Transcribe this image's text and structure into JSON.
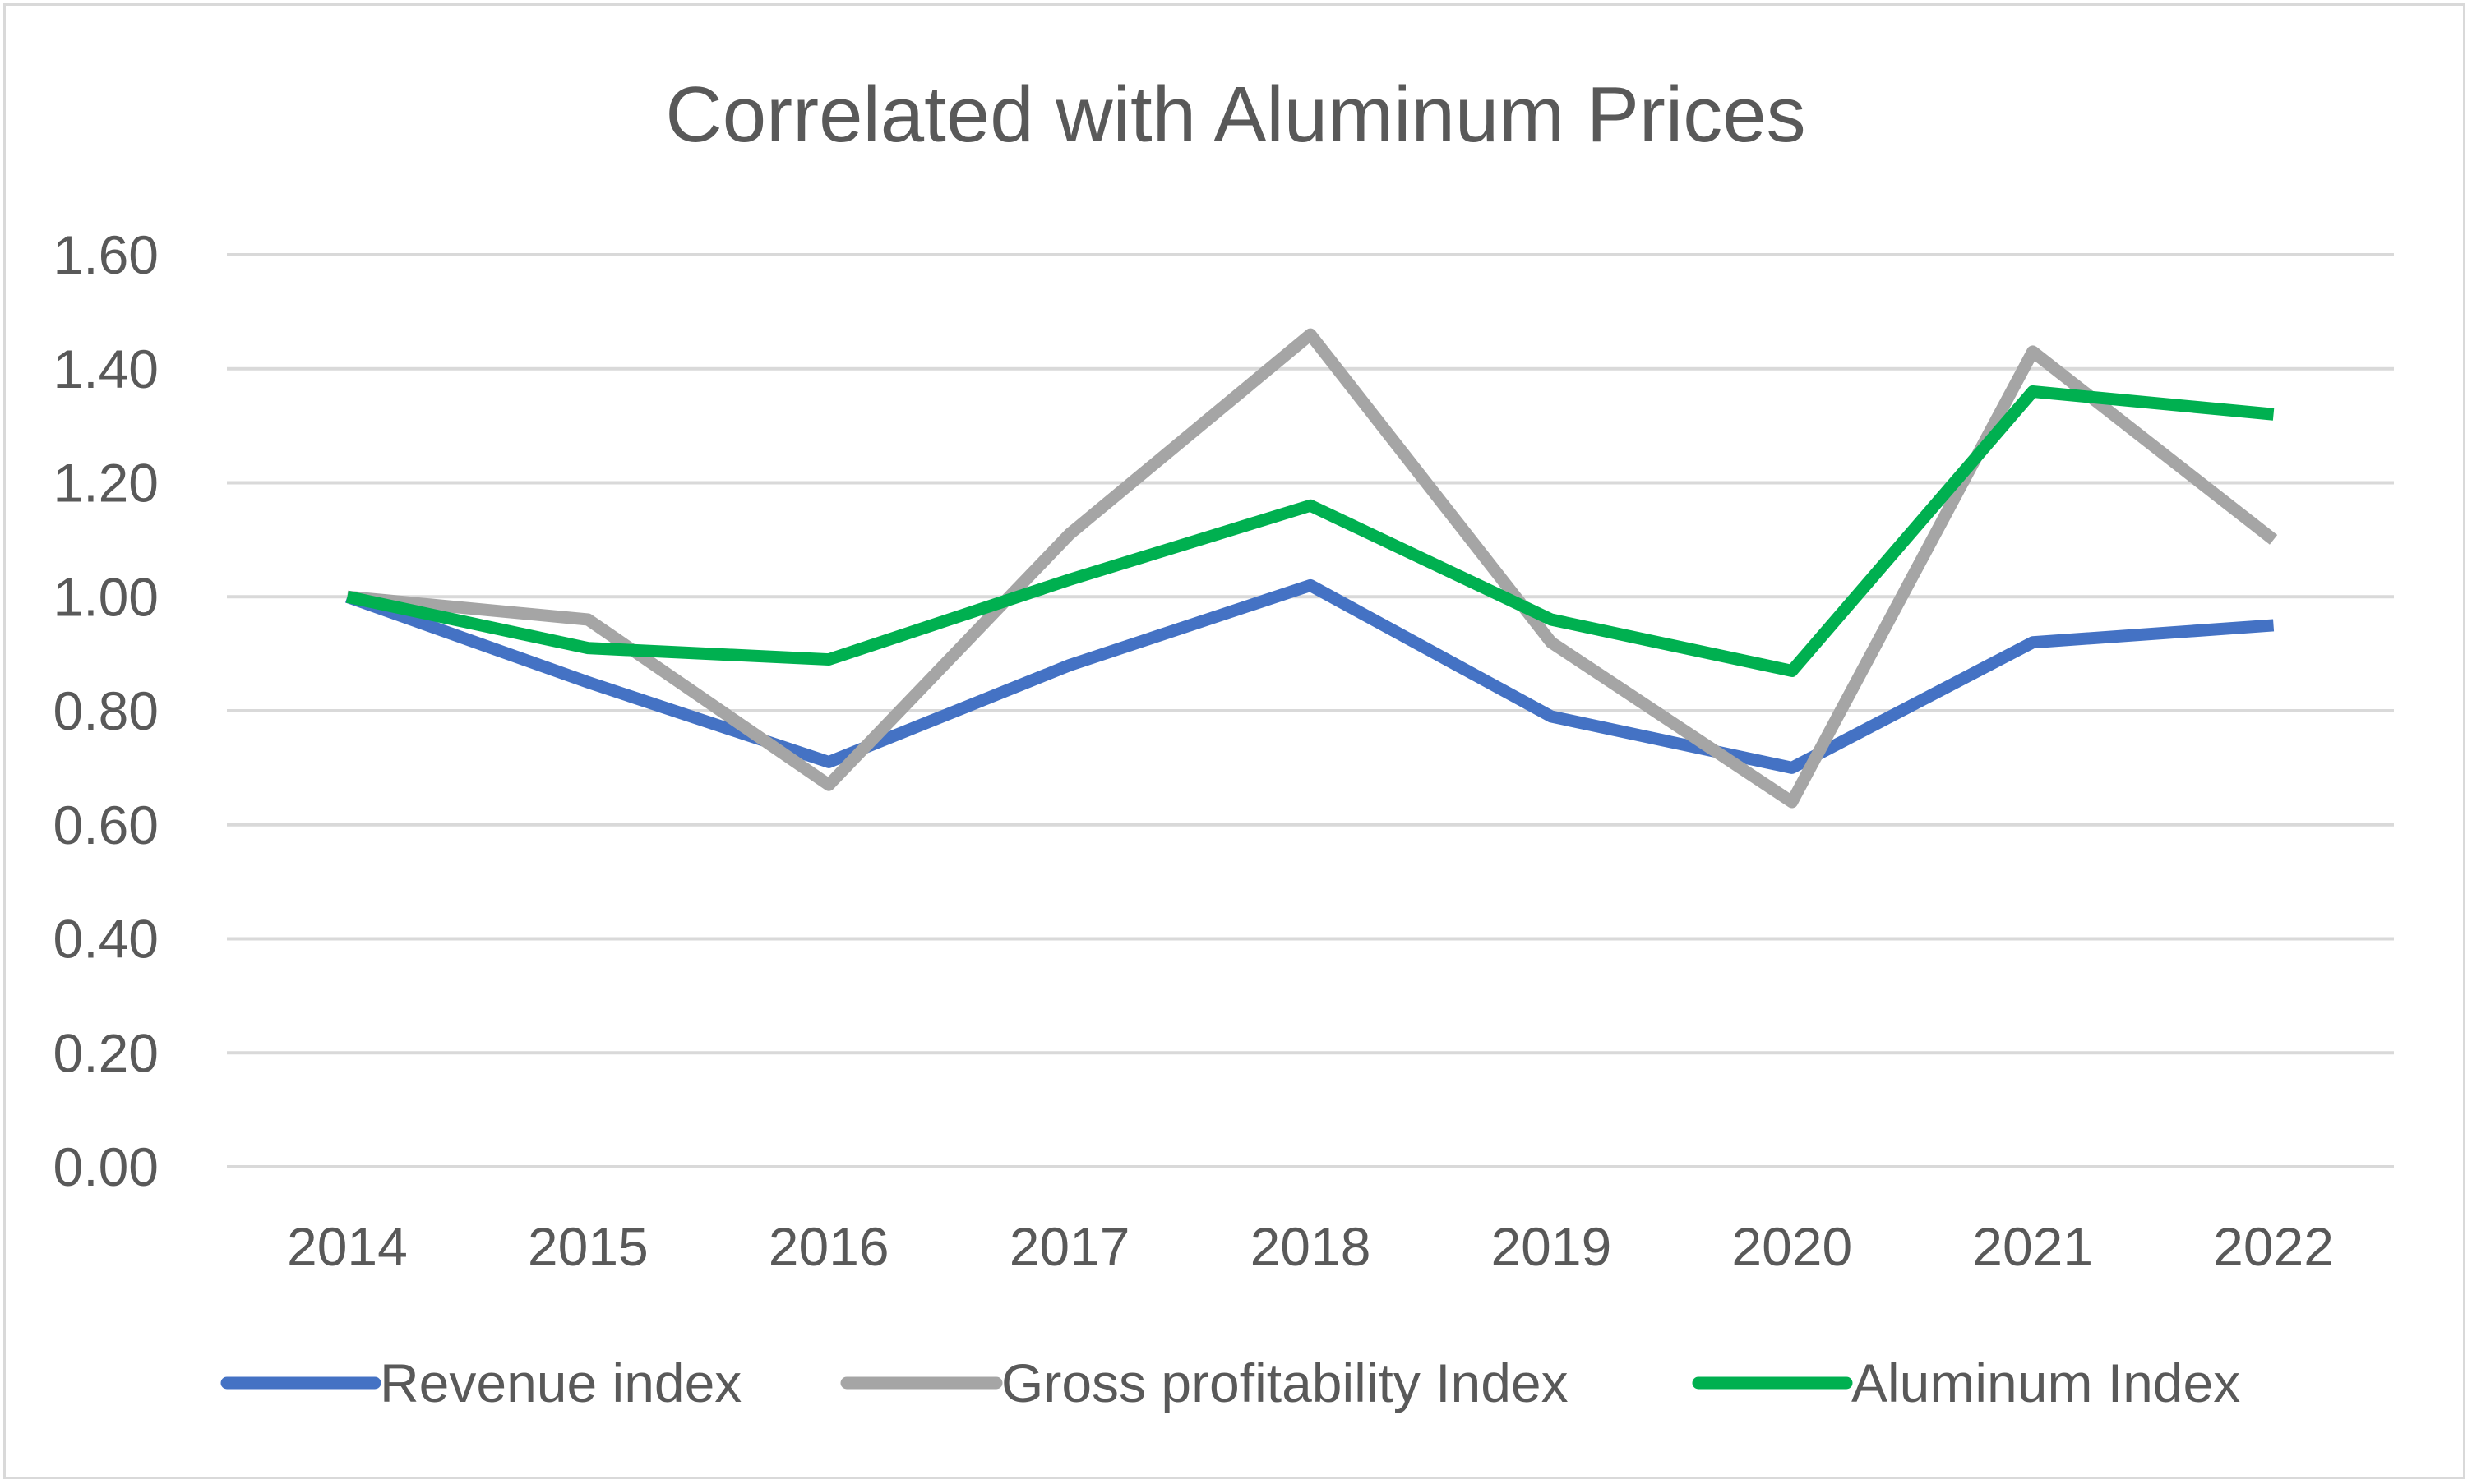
{
  "chart_data": {
    "type": "line",
    "title": "Correlated with Aluminum Prices",
    "xlabel": "",
    "ylabel": "",
    "categories": [
      "2014",
      "2015",
      "2016",
      "2017",
      "2018",
      "2019",
      "2020",
      "2021",
      "2022"
    ],
    "y_ticks": [
      "0.00",
      "0.20",
      "0.40",
      "0.60",
      "0.80",
      "1.00",
      "1.20",
      "1.40",
      "1.60"
    ],
    "ylim": [
      0,
      1.6
    ],
    "grid": true,
    "legend_position": "bottom",
    "series": [
      {
        "name": "Revenue index",
        "color": "#4472c4",
        "values": [
          1.0,
          0.85,
          0.71,
          0.88,
          1.02,
          0.79,
          0.7,
          0.92,
          0.95
        ]
      },
      {
        "name": "Gross profitability Index",
        "color": "#a5a5a5",
        "values": [
          1.0,
          0.96,
          0.67,
          1.11,
          1.46,
          0.92,
          0.64,
          1.43,
          1.1
        ]
      },
      {
        "name": "Aluminum Index",
        "color": "#00b050",
        "values": [
          1.0,
          0.91,
          0.89,
          1.03,
          1.16,
          0.96,
          0.87,
          1.36,
          1.32
        ]
      }
    ]
  }
}
